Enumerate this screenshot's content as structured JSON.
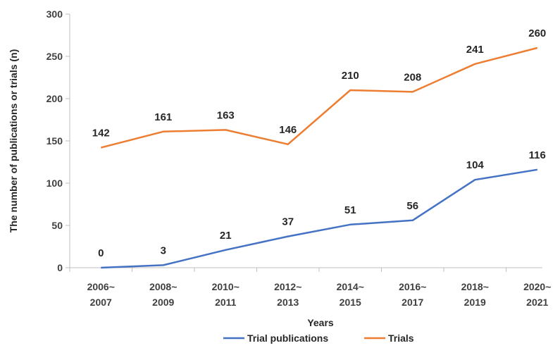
{
  "chart_data": {
    "type": "line",
    "categories": [
      [
        "2006~",
        "2007"
      ],
      [
        "2008~",
        "2009"
      ],
      [
        "2010~",
        "2011"
      ],
      [
        "2012~",
        "2013"
      ],
      [
        "2014~",
        "2015"
      ],
      [
        "2016~",
        "2017"
      ],
      [
        "2018~",
        "2019"
      ],
      [
        "2020~",
        "2021"
      ]
    ],
    "series": [
      {
        "name": "Trial publications",
        "color": "#4472C4",
        "values": [
          0,
          3,
          21,
          37,
          51,
          56,
          104,
          116
        ],
        "labels": [
          "0",
          "3",
          "21",
          "37",
          "51",
          "56",
          "104",
          "116"
        ]
      },
      {
        "name": "Trials",
        "color": "#ED7D31",
        "values": [
          142,
          161,
          163,
          146,
          210,
          208,
          241,
          260
        ],
        "labels": [
          "142",
          "161",
          "163",
          "146",
          "210",
          "208",
          "241",
          "260"
        ]
      }
    ],
    "xlabel": "Years",
    "ylabel": "The number of publications or trials (n)",
    "ylim": [
      0,
      300
    ],
    "yticks": [
      0,
      50,
      100,
      150,
      200,
      250,
      300
    ],
    "ytick_labels": [
      "0",
      "50",
      "100",
      "150",
      "200",
      "250",
      "300"
    ],
    "grid": false,
    "legend_position": "bottom"
  }
}
